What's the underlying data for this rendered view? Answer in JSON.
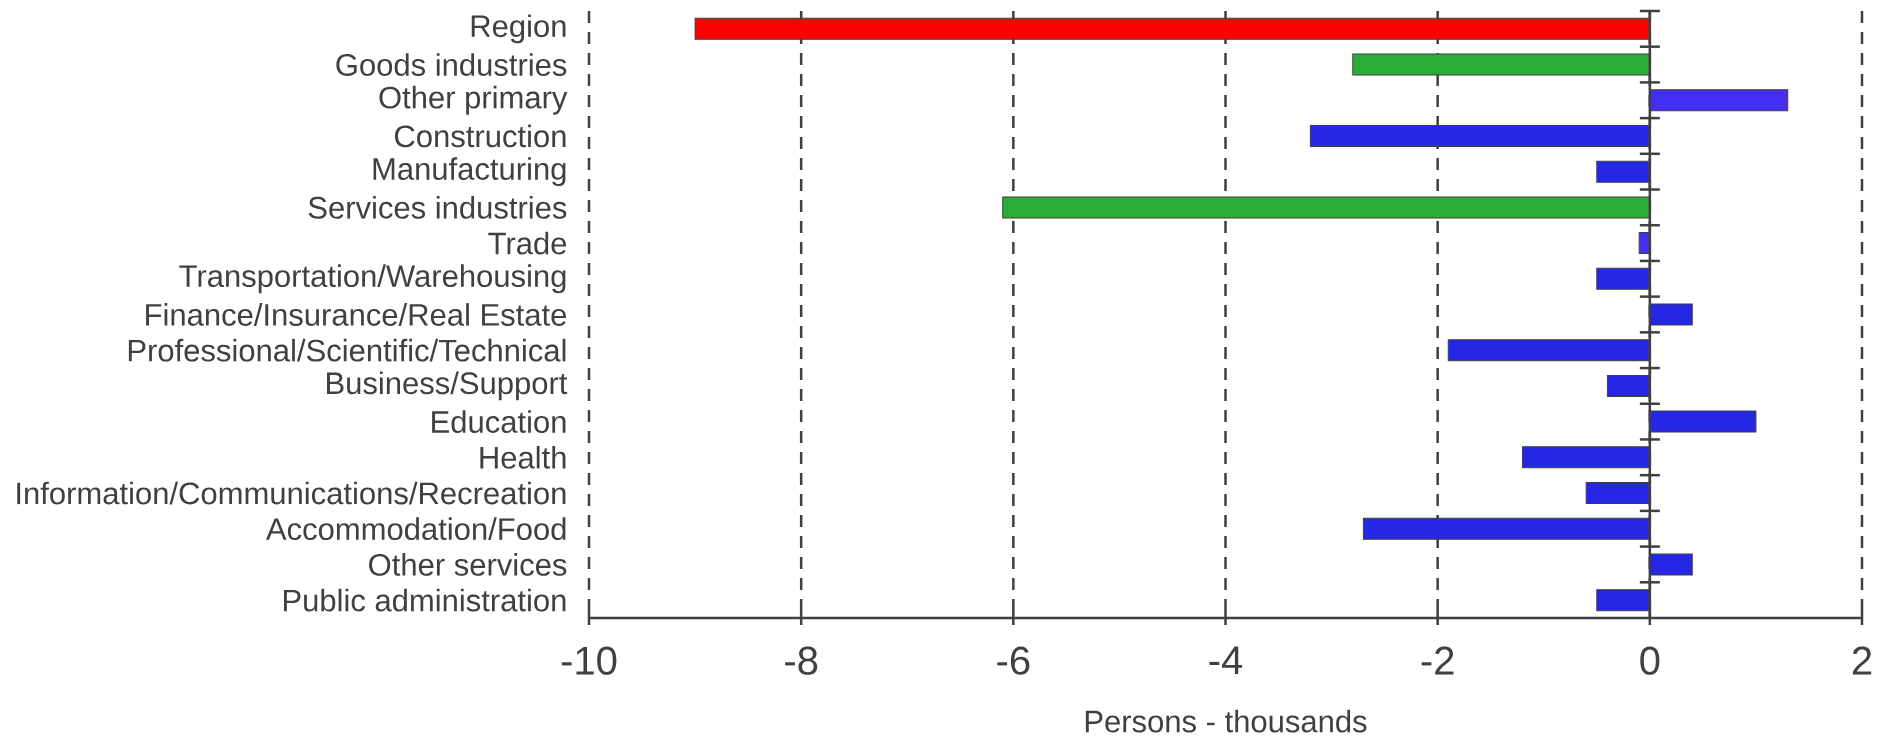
{
  "chart_data": {
    "type": "bar",
    "orientation": "horizontal",
    "xlabel": "Persons - thousands",
    "categories": [
      "Region",
      "Goods industries",
      "Other primary",
      "Construction",
      "Manufacturing",
      "Services industries",
      "Trade",
      "Transportation/Warehousing",
      "Finance/Insurance/Real Estate",
      "Professional/Scientific/Technical",
      "Business/Support",
      "Education",
      "Health",
      "Information/Communications/Recreation",
      "Accommodation/Food",
      "Other services",
      "Public administration"
    ],
    "values": [
      -9.0,
      -2.8,
      1.3,
      -3.2,
      -0.5,
      -6.1,
      -0.1,
      -0.5,
      0.4,
      -1.9,
      -0.4,
      1.0,
      -1.2,
      -0.6,
      -2.7,
      0.4,
      -0.5
    ],
    "colors": [
      "#ff0000",
      "#2aac36",
      "#442ef2",
      "#2626e6",
      "#2626e6",
      "#2aac36",
      "#442ef2",
      "#2626e6",
      "#2626e6",
      "#2626e6",
      "#2626e6",
      "#2626e6",
      "#2626e6",
      "#2626e6",
      "#2626e6",
      "#2626e6",
      "#2626e6"
    ],
    "xlim": [
      -10,
      2
    ],
    "xticks": [
      -10,
      -8,
      -6,
      -4,
      -2,
      0,
      2
    ],
    "grid": "x"
  }
}
